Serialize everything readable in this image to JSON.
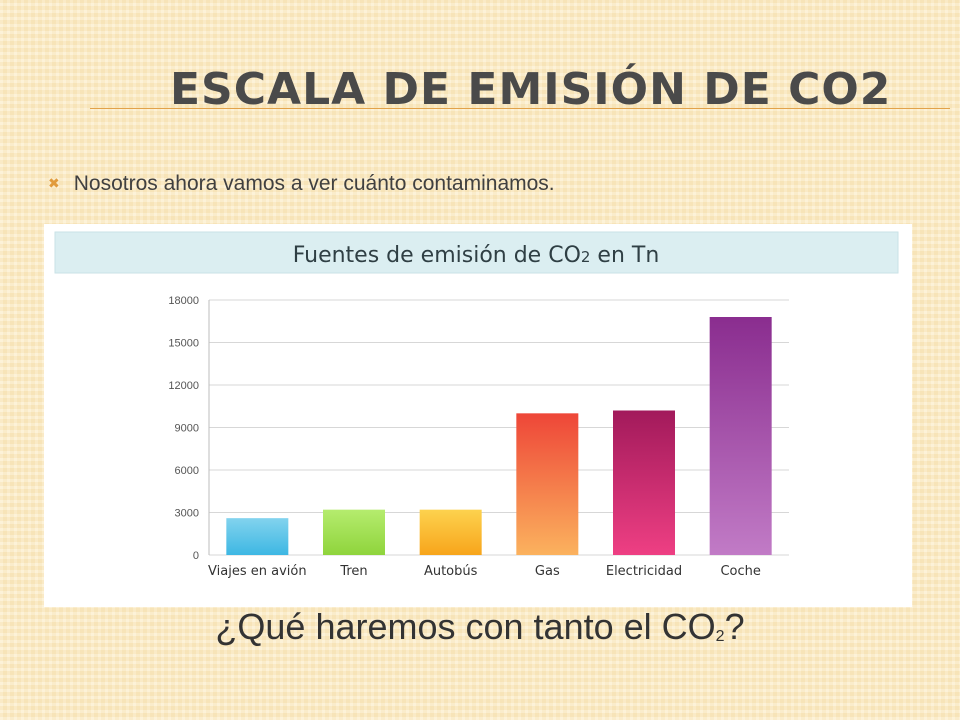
{
  "slide": {
    "title": "ESCALA DE EMISIÓN DE CO2",
    "bullet": "Nosotros ahora vamos a ver cuánto contaminamos.",
    "question_prefix": "¿Qué haremos con tanto el CO",
    "question_sub": "2",
    "question_suffix": "?"
  },
  "chart_data": {
    "type": "bar",
    "title": "Fuentes de emisión de CO",
    "title_sub": "2",
    "title_suffix": " en Tn",
    "categories": [
      "Viajes en avión",
      "Tren",
      "Autobús",
      "Gas",
      "Electricidad",
      "Coche"
    ],
    "values": [
      2600,
      3200,
      3200,
      10000,
      10200,
      16800
    ],
    "ylim": [
      0,
      18000
    ],
    "yticks": [
      "0",
      "3000",
      "6000",
      "9000",
      "12000",
      "15000",
      "18000"
    ],
    "grid": true,
    "colors": [
      [
        "#82d3ee",
        "#3db7e3"
      ],
      [
        "#b5ec6e",
        "#8fd43c"
      ],
      [
        "#fdd24e",
        "#f7a51b"
      ],
      [
        "#ee4638",
        "#fbb25e"
      ],
      [
        "#a21a5b",
        "#ee3f83"
      ],
      [
        "#8a2d8f",
        "#c17bc6"
      ]
    ]
  }
}
